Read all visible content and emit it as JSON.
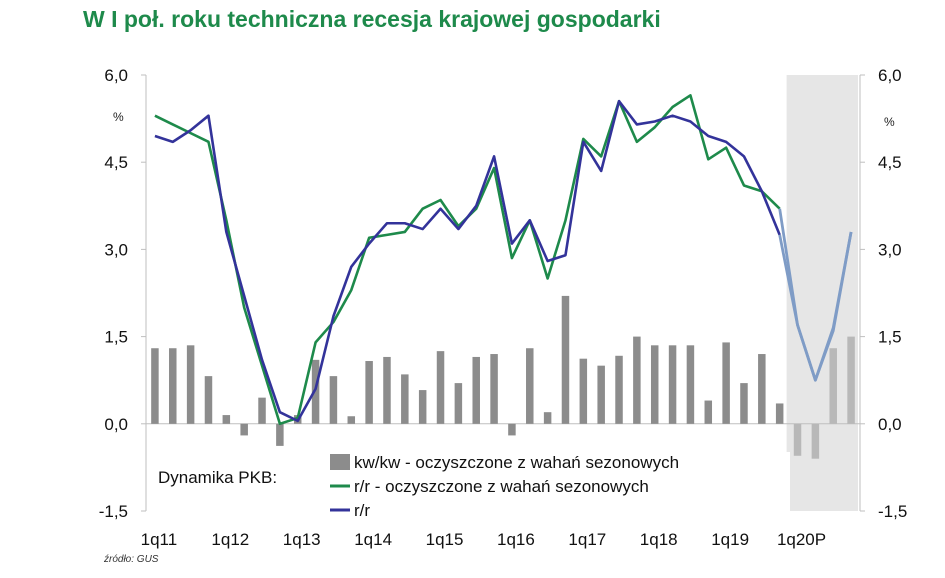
{
  "title": "W I poł. roku techniczna recesja krajowej gospodarki",
  "source": "źródło: GUS",
  "chart_data": {
    "type": "bar+line",
    "title": "W I poł. roku techniczna recesja krajowej gospodarki",
    "unit_left": "%",
    "unit_right": "%",
    "ylim": [
      -1.5,
      6.0
    ],
    "y_ticks": [
      "6,0",
      "4,5",
      "3,0",
      "1,5",
      "0,0",
      "-1,5"
    ],
    "y_tick_values": [
      6.0,
      4.5,
      3.0,
      1.5,
      0.0,
      -1.5
    ],
    "x_tick_labels": [
      "1q11",
      "1q12",
      "1q13",
      "1q14",
      "1q15",
      "1q16",
      "1q17",
      "1q18",
      "1q19",
      "1q20P"
    ],
    "x_tick_indices": [
      0,
      4,
      8,
      12,
      16,
      20,
      24,
      28,
      32,
      36
    ],
    "forecast_start_index": 36,
    "shaded_region": {
      "from_index": 36,
      "to_index": 39,
      "color": "#e6e6e6"
    },
    "legend_label": "Dynamika PKB:",
    "colors": {
      "bar": "#8c8c8c",
      "bar_forecast": "#b8b8b8",
      "green": "#1e8a4b",
      "blue": "#33339a",
      "forecast_line": "#7f9cc6",
      "shade": "#e6e6e6"
    },
    "quarters": 40,
    "series": [
      {
        "name": "kw/kw - oczyszczone z wahań sezonowych",
        "kind": "bar",
        "values": [
          1.3,
          1.3,
          1.35,
          0.82,
          0.15,
          -0.2,
          0.45,
          -0.38,
          0.15,
          1.1,
          0.82,
          0.13,
          1.08,
          1.15,
          0.85,
          0.58,
          1.25,
          0.7,
          1.15,
          1.2,
          -0.2,
          1.3,
          0.2,
          2.2,
          1.12,
          1.0,
          1.17,
          1.5,
          1.35,
          1.35,
          1.35,
          0.4,
          1.4,
          0.7,
          1.2,
          0.35,
          -0.55,
          -0.6,
          1.3,
          1.5
        ]
      },
      {
        "name": "r/r - oczyszczone z wahań sezonowych",
        "kind": "line",
        "values": [
          5.3,
          5.15,
          5.0,
          4.85,
          3.5,
          2.0,
          1.0,
          0.0,
          0.1,
          1.4,
          1.75,
          2.3,
          3.2,
          3.25,
          3.3,
          3.7,
          3.85,
          3.4,
          3.7,
          4.4,
          2.85,
          3.5,
          2.5,
          3.5,
          4.9,
          4.6,
          5.55,
          4.85,
          5.1,
          5.45,
          5.65,
          4.55,
          4.75,
          4.1,
          4.0,
          3.7,
          1.7,
          0.75,
          1.65,
          3.3
        ]
      },
      {
        "name": "r/r",
        "kind": "line",
        "values": [
          4.95,
          4.85,
          5.05,
          5.3,
          3.3,
          2.2,
          1.1,
          0.2,
          0.05,
          0.6,
          1.85,
          2.7,
          3.1,
          3.45,
          3.45,
          3.35,
          3.7,
          3.35,
          3.75,
          4.6,
          3.1,
          3.5,
          2.8,
          2.9,
          4.85,
          4.35,
          5.55,
          5.15,
          5.2,
          5.3,
          5.2,
          4.95,
          4.85,
          4.6,
          4.0,
          3.25,
          1.7,
          0.75,
          1.6,
          3.3
        ]
      }
    ]
  }
}
